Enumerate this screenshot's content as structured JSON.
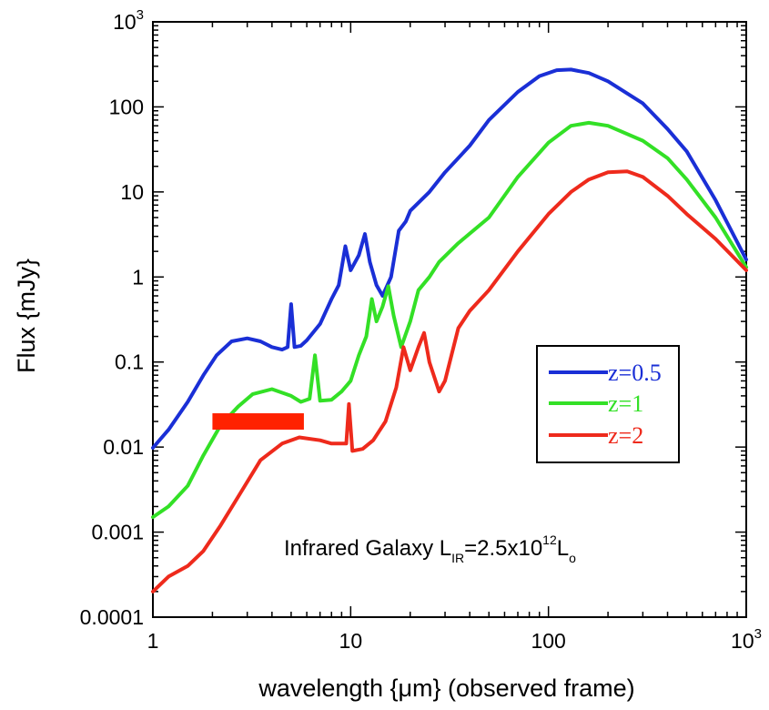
{
  "chart_data": {
    "type": "line",
    "title": "",
    "xlabel": "wavelength  {μm}  (observed frame)",
    "ylabel": "Flux  {mJy}",
    "xscale": "log",
    "yscale": "log",
    "xlim": [
      1,
      1000
    ],
    "ylim": [
      0.0001,
      1000
    ],
    "grid": false,
    "legend_position": "right, lower-middle",
    "x_ticks": [
      {
        "value": 1,
        "label": "1"
      },
      {
        "value": 10,
        "label": "10"
      },
      {
        "value": 100,
        "label": "100"
      },
      {
        "value": 1000,
        "label": "10",
        "sup": "3"
      }
    ],
    "y_ticks": [
      {
        "value": 0.0001,
        "label": "0.0001"
      },
      {
        "value": 0.001,
        "label": "0.001"
      },
      {
        "value": 0.01,
        "label": "0.01"
      },
      {
        "value": 0.1,
        "label": "0.1"
      },
      {
        "value": 1,
        "label": "1"
      },
      {
        "value": 10,
        "label": "10"
      },
      {
        "value": 100,
        "label": "100"
      },
      {
        "value": 1000,
        "label": "10",
        "sup": "3"
      }
    ],
    "series": [
      {
        "name": "z=0.5",
        "color": "#1a2fd6",
        "points": [
          [
            1.0,
            0.0098
          ],
          [
            1.2,
            0.016
          ],
          [
            1.5,
            0.034
          ],
          [
            1.8,
            0.07
          ],
          [
            2.1,
            0.12
          ],
          [
            2.5,
            0.175
          ],
          [
            3.0,
            0.19
          ],
          [
            3.5,
            0.175
          ],
          [
            4.0,
            0.15
          ],
          [
            4.5,
            0.14
          ],
          [
            4.8,
            0.15
          ],
          [
            5.0,
            0.48
          ],
          [
            5.2,
            0.15
          ],
          [
            5.6,
            0.155
          ],
          [
            6.0,
            0.18
          ],
          [
            7.0,
            0.28
          ],
          [
            8.0,
            0.55
          ],
          [
            8.7,
            0.8
          ],
          [
            9.4,
            2.3
          ],
          [
            10.0,
            1.2
          ],
          [
            11.0,
            1.8
          ],
          [
            11.8,
            3.2
          ],
          [
            12.5,
            1.5
          ],
          [
            13.5,
            0.8
          ],
          [
            14.5,
            0.6
          ],
          [
            16.0,
            1.0
          ],
          [
            17.5,
            3.5
          ],
          [
            19.0,
            4.5
          ],
          [
            20.0,
            6.0
          ],
          [
            25.0,
            10.0
          ],
          [
            30.0,
            17.0
          ],
          [
            40.0,
            35.0
          ],
          [
            50.0,
            70.0
          ],
          [
            70.0,
            150.0
          ],
          [
            90.0,
            230.0
          ],
          [
            110.0,
            270.0
          ],
          [
            130.0,
            275.0
          ],
          [
            160.0,
            250.0
          ],
          [
            200.0,
            200.0
          ],
          [
            300.0,
            110.0
          ],
          [
            400.0,
            55.0
          ],
          [
            500.0,
            30.0
          ],
          [
            700.0,
            8.0
          ],
          [
            1000.0,
            1.6
          ]
        ]
      },
      {
        "name": "z=1",
        "color": "#33e026",
        "points": [
          [
            1.0,
            0.0015
          ],
          [
            1.2,
            0.002
          ],
          [
            1.5,
            0.0035
          ],
          [
            1.8,
            0.008
          ],
          [
            2.2,
            0.018
          ],
          [
            2.7,
            0.03
          ],
          [
            3.2,
            0.042
          ],
          [
            4.0,
            0.048
          ],
          [
            5.0,
            0.04
          ],
          [
            5.6,
            0.034
          ],
          [
            6.2,
            0.037
          ],
          [
            6.6,
            0.12
          ],
          [
            7.0,
            0.035
          ],
          [
            8.0,
            0.036
          ],
          [
            9.0,
            0.045
          ],
          [
            10.0,
            0.06
          ],
          [
            11.0,
            0.12
          ],
          [
            12.0,
            0.2
          ],
          [
            12.8,
            0.55
          ],
          [
            13.5,
            0.3
          ],
          [
            14.5,
            0.45
          ],
          [
            15.5,
            0.78
          ],
          [
            16.5,
            0.35
          ],
          [
            18.0,
            0.15
          ],
          [
            20.0,
            0.3
          ],
          [
            22.0,
            0.7
          ],
          [
            25.0,
            1.0
          ],
          [
            28.0,
            1.5
          ],
          [
            35.0,
            2.5
          ],
          [
            50.0,
            5.0
          ],
          [
            70.0,
            15.0
          ],
          [
            100.0,
            38.0
          ],
          [
            130.0,
            60.0
          ],
          [
            160.0,
            65.0
          ],
          [
            200.0,
            60.0
          ],
          [
            300.0,
            40.0
          ],
          [
            400.0,
            25.0
          ],
          [
            500.0,
            14.0
          ],
          [
            700.0,
            5.0
          ],
          [
            1000.0,
            1.3
          ]
        ]
      },
      {
        "name": "z=2",
        "color": "#ee2a1c",
        "points": [
          [
            1.0,
            0.0002
          ],
          [
            1.2,
            0.0003
          ],
          [
            1.5,
            0.0004
          ],
          [
            1.8,
            0.0006
          ],
          [
            2.2,
            0.0012
          ],
          [
            2.8,
            0.003
          ],
          [
            3.5,
            0.007
          ],
          [
            4.5,
            0.011
          ],
          [
            5.5,
            0.013
          ],
          [
            7.0,
            0.012
          ],
          [
            8.0,
            0.011
          ],
          [
            9.5,
            0.011
          ],
          [
            9.8,
            0.032
          ],
          [
            10.2,
            0.009
          ],
          [
            11.5,
            0.0095
          ],
          [
            13.0,
            0.012
          ],
          [
            15.0,
            0.02
          ],
          [
            17.0,
            0.05
          ],
          [
            18.5,
            0.15
          ],
          [
            20.0,
            0.08
          ],
          [
            22.0,
            0.15
          ],
          [
            23.5,
            0.22
          ],
          [
            25.0,
            0.1
          ],
          [
            28.0,
            0.045
          ],
          [
            30.0,
            0.06
          ],
          [
            35.0,
            0.25
          ],
          [
            40.0,
            0.4
          ],
          [
            50.0,
            0.7
          ],
          [
            70.0,
            2.0
          ],
          [
            100.0,
            5.5
          ],
          [
            130.0,
            10.0
          ],
          [
            160.0,
            14.0
          ],
          [
            200.0,
            17.0
          ],
          [
            250.0,
            17.5
          ],
          [
            300.0,
            15.0
          ],
          [
            400.0,
            9.0
          ],
          [
            500.0,
            5.5
          ],
          [
            700.0,
            2.8
          ],
          [
            1000.0,
            1.2
          ]
        ]
      }
    ],
    "highlight_bar": {
      "color": "#ff2200",
      "x_range": [
        2.0,
        5.8
      ],
      "y": 0.02
    },
    "annotation": {
      "main": "Infrared Galaxy L",
      "sub": "IR",
      "mid": "=2.5x10",
      "sup": "12",
      "end": "L",
      "end_sub": "o"
    }
  }
}
